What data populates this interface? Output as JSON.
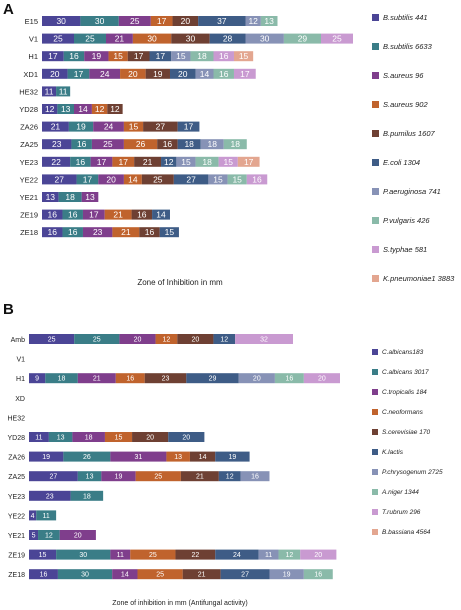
{
  "panels": {
    "a_letter": "A",
    "b_letter": "B"
  },
  "chart_data": [
    {
      "type": "bar",
      "stacked": true,
      "orientation": "horizontal",
      "panel": "A",
      "xlabel": "Zone of Inhibition in mm",
      "ylabel": "",
      "grid": false,
      "legend_position": "right",
      "categories": [
        "E15",
        "V1",
        "H1",
        "XD1",
        "HE32",
        "YD28",
        "ZA26",
        "ZA25",
        "YE23",
        "YE22",
        "YE21",
        "ZE19",
        "ZE18"
      ],
      "series": [
        {
          "name": "B.subtilis 441",
          "color": "#4b4596",
          "values": [
            30,
            25,
            17,
            20,
            11,
            12,
            21,
            23,
            22,
            27,
            13,
            16,
            16
          ]
        },
        {
          "name": "B.subtilis 6633",
          "color": "#3a7d87",
          "values": [
            30,
            25,
            16,
            17,
            11,
            13,
            19,
            16,
            16,
            17,
            18,
            16,
            16
          ]
        },
        {
          "name": "S.aureus 96",
          "color": "#7f3e8c",
          "values": [
            25,
            21,
            19,
            24,
            0,
            14,
            24,
            25,
            17,
            20,
            13,
            17,
            23
          ]
        },
        {
          "name": "S.aureus 902",
          "color": "#c0632d",
          "values": [
            17,
            30,
            15,
            20,
            0,
            12,
            15,
            26,
            17,
            14,
            0,
            21,
            21
          ]
        },
        {
          "name": "B.pumilus 1607",
          "color": "#6e4033",
          "values": [
            20,
            30,
            17,
            19,
            0,
            12,
            27,
            16,
            21,
            25,
            0,
            16,
            16
          ]
        },
        {
          "name": "E.coli 1304",
          "color": "#3e5c86",
          "values": [
            37,
            28,
            17,
            20,
            0,
            0,
            17,
            18,
            12,
            27,
            0,
            14,
            15
          ]
        },
        {
          "name": "P.aeruginosa 741",
          "color": "#8792b6",
          "values": [
            12,
            30,
            15,
            14,
            0,
            0,
            0,
            18,
            15,
            15,
            0,
            0,
            0
          ]
        },
        {
          "name": "P.vulgaris 426",
          "color": "#8abaa9",
          "values": [
            13,
            29,
            18,
            16,
            0,
            0,
            0,
            18,
            18,
            15,
            0,
            0,
            0
          ]
        },
        {
          "name": "S.typhae 581",
          "color": "#c99ad1",
          "values": [
            0,
            25,
            16,
            17,
            0,
            0,
            0,
            0,
            15,
            16,
            0,
            0,
            0
          ]
        },
        {
          "name": "K.pneumoniae1 3883",
          "color": "#e3a690",
          "values": [
            0,
            0,
            15,
            0,
            0,
            0,
            0,
            0,
            17,
            0,
            0,
            0,
            0
          ]
        }
      ]
    },
    {
      "type": "bar",
      "stacked": true,
      "orientation": "horizontal",
      "panel": "B",
      "xlabel": "Zone of inhibition in mm (Antifungal activity)",
      "ylabel": "",
      "grid": false,
      "legend_position": "right",
      "categories": [
        "Amb",
        "V1",
        "H1",
        "XD",
        "HE32",
        "YD28",
        "ZA26",
        "ZA25",
        "YE23",
        "YE22",
        "YE21",
        "ZE19",
        "ZE18"
      ],
      "series": [
        {
          "name": "C.albicans183",
          "color": "#4b4596",
          "values": [
            25,
            0,
            9,
            0,
            0,
            11,
            19,
            27,
            23,
            4,
            5,
            15,
            16
          ]
        },
        {
          "name": "C.albicans 3017",
          "color": "#3a7d87",
          "values": [
            25,
            0,
            18,
            0,
            0,
            13,
            26,
            13,
            18,
            11,
            12,
            30,
            30
          ]
        },
        {
          "name": "C.tropicalis 184",
          "color": "#7f3e8c",
          "values": [
            20,
            0,
            21,
            0,
            0,
            18,
            31,
            19,
            0,
            0,
            20,
            11,
            14
          ]
        },
        {
          "name": "C.neoformans",
          "color": "#c0632d",
          "values": [
            12,
            0,
            16,
            0,
            0,
            15,
            13,
            25,
            0,
            0,
            0,
            25,
            25
          ]
        },
        {
          "name": "S.cerevisiae 170",
          "color": "#6e4033",
          "values": [
            20,
            0,
            23,
            0,
            0,
            20,
            14,
            21,
            0,
            0,
            0,
            22,
            21
          ]
        },
        {
          "name": "K.lactis",
          "color": "#3e5c86",
          "values": [
            12,
            0,
            29,
            0,
            0,
            20,
            19,
            12,
            0,
            0,
            0,
            24,
            27
          ]
        },
        {
          "name": "P.chrysogenum 2725",
          "color": "#8792b6",
          "values": [
            0,
            0,
            20,
            0,
            0,
            0,
            0,
            16,
            0,
            0,
            0,
            11,
            19
          ]
        },
        {
          "name": "A.niger 1344",
          "color": "#8abaa9",
          "values": [
            0,
            0,
            16,
            0,
            0,
            0,
            0,
            0,
            0,
            0,
            0,
            12,
            16
          ]
        },
        {
          "name": "T.rubrum 296",
          "color": "#c99ad1",
          "values": [
            32,
            0,
            20,
            0,
            0,
            0,
            0,
            0,
            0,
            0,
            0,
            20,
            0
          ]
        },
        {
          "name": "B.bassiana 4564",
          "color": "#e3a690",
          "values": [
            0,
            0,
            0,
            0,
            0,
            0,
            0,
            0,
            0,
            0,
            0,
            0,
            0
          ]
        }
      ]
    }
  ]
}
